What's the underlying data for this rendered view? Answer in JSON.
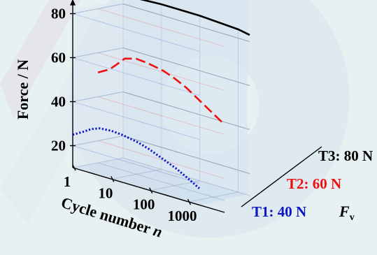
{
  "chart_data": {
    "type": "line",
    "title": "",
    "ylabel": "Force / N",
    "xlabel": "Cycle number n",
    "zlabel": "Fv",
    "x_scale": "log",
    "xlim": [
      1,
      2000
    ],
    "ylim": [
      10,
      85
    ],
    "y_ticks": [
      "20",
      "40",
      "60",
      "80"
    ],
    "x_ticks": [
      "1",
      "10",
      "100",
      "1000"
    ],
    "grid": true,
    "series": [
      {
        "name": "T1: 40 N",
        "color": "#0b16c8",
        "style": "dotted",
        "x": [
          1,
          2,
          3,
          5,
          10,
          20,
          50,
          100,
          200,
          500,
          1000,
          2000
        ],
        "y": [
          25,
          28,
          30,
          31.5,
          32,
          31.6,
          30.3,
          28.7,
          26.5,
          23.6,
          20.8,
          17.7
        ]
      },
      {
        "name": "T2: 60 N",
        "color": "#ee1010",
        "style": "dashed",
        "x": [
          1,
          2,
          3,
          5,
          10,
          20,
          50,
          100,
          200,
          500,
          1000,
          2000
        ],
        "y": [
          51,
          54,
          57,
          61,
          62.5,
          62,
          60.7,
          58.7,
          56.1,
          51.5,
          48,
          44.5
        ]
      },
      {
        "name": "T3: 80 N",
        "color": "#000000",
        "style": "solid",
        "x": [
          1,
          10,
          100,
          1000,
          2000
        ],
        "y": [
          84,
          85,
          85,
          84,
          83
        ]
      }
    ]
  }
}
